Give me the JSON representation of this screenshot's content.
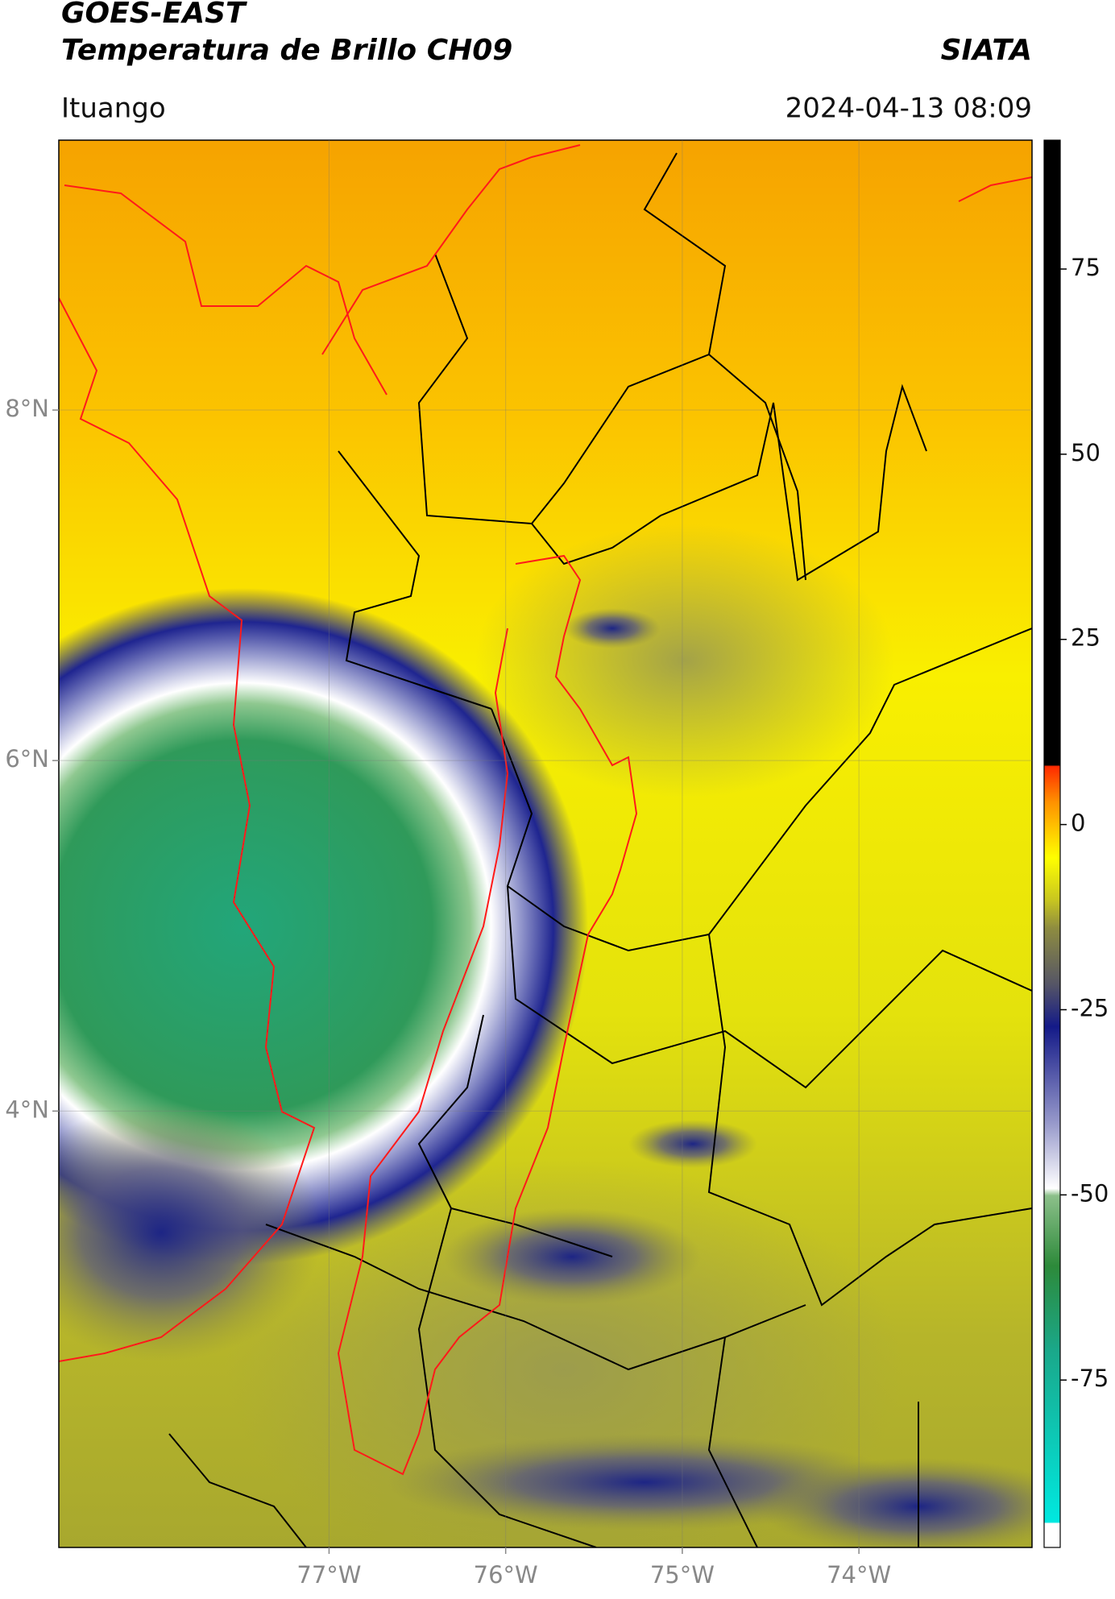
{
  "header": {
    "title": "GOES-EAST",
    "subtitle": "Temperatura de Brillo CH09",
    "brand": "SIATA",
    "location": "Ituango",
    "datetime": "2024-04-13 08:09"
  },
  "map": {
    "xlim": [
      -78.53,
      -73.02
    ],
    "ylim": [
      1.51,
      9.54
    ],
    "xticks": [
      {
        "value": -77,
        "label": "77°W"
      },
      {
        "value": -76,
        "label": "76°W"
      },
      {
        "value": -75,
        "label": "75°W"
      },
      {
        "value": -74,
        "label": "74°W"
      }
    ],
    "yticks": [
      {
        "value": 8,
        "label": "8°N"
      },
      {
        "value": 6,
        "label": "6°N"
      },
      {
        "value": 4,
        "label": "4°N"
      }
    ],
    "grid": true
  },
  "colorbar": {
    "lim": [
      -97.6,
      92.4
    ],
    "ticks": [
      75,
      50,
      25,
      0,
      -25,
      -50,
      -75
    ]
  }
}
